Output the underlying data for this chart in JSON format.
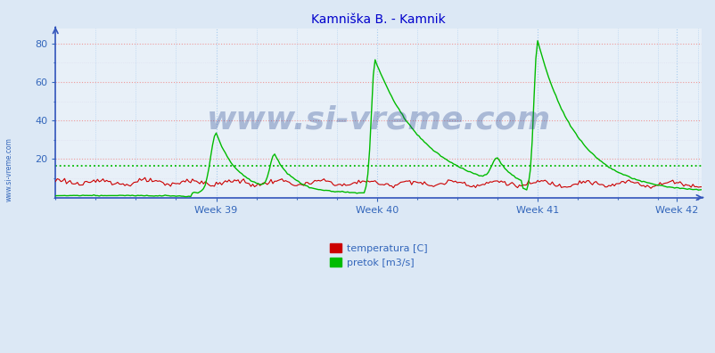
{
  "title": "Kamniška B. - Kamnik",
  "title_color": "#0000cc",
  "title_fontsize": 10,
  "bg_color": "#dce8f5",
  "plot_bg_color": "#e8f0f8",
  "grid_color_major_h": "#ee9999",
  "grid_color_major_v": "#aaccee",
  "grid_color_minor_h": "#ddddee",
  "grid_color_minor_v": "#bbccdd",
  "xmin": 0,
  "xmax": 354,
  "ymin": 0,
  "ymax": 88,
  "yticks": [
    20,
    40,
    60,
    80
  ],
  "xtick_labels": [
    "Week 39",
    "Week 40",
    "Week 41",
    "Week 42"
  ],
  "xtick_positions": [
    88,
    176,
    264,
    340
  ],
  "hline_value": 16.5,
  "hline_color": "#00bb00",
  "temp_color": "#cc0000",
  "flow_color": "#00bb00",
  "watermark_text": "www.si-vreme.com",
  "watermark_color": "#1a3a8a",
  "watermark_alpha": 0.3,
  "watermark_fontsize": 26,
  "ylabel_left": "www.si-vreme.com",
  "ylabel_color": "#3366bb",
  "legend_labels": [
    "temperatura [C]",
    "pretok [m3/s]"
  ],
  "legend_colors": [
    "#cc0000",
    "#00bb00"
  ],
  "axis_color": "#3355bb",
  "tick_color": "#3366bb",
  "tick_fontsize": 8,
  "spine_color": "#3355bb"
}
